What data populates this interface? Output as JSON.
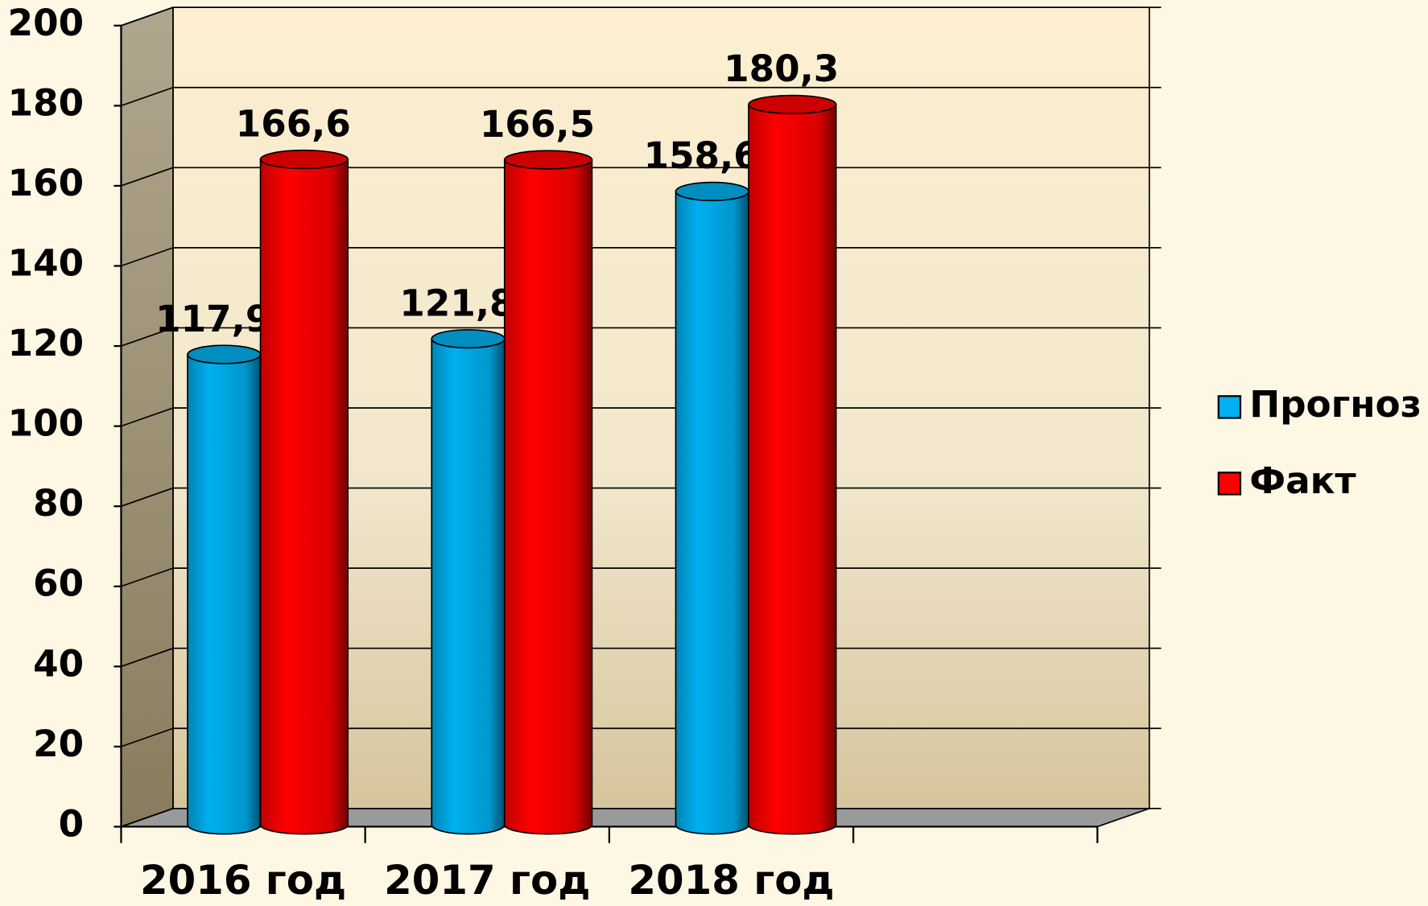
{
  "chart_data": {
    "type": "bar3d-cylinder",
    "categories": [
      "2016 год",
      "2017 год",
      "2018 год",
      null
    ],
    "series": [
      {
        "name": "Прогноз",
        "color": "#00b0f0",
        "values": [
          117.9,
          121.8,
          158.6,
          null
        ],
        "value_labels": [
          "117,9",
          "121,8",
          "158,6",
          null
        ]
      },
      {
        "name": "Факт",
        "color": "#ff0000",
        "values": [
          166.6,
          166.5,
          180.3,
          null
        ],
        "value_labels": [
          "166,6",
          "166,5",
          "180,3",
          null
        ]
      }
    ],
    "ylim": [
      0,
      200
    ],
    "yticks": [
      0,
      20,
      40,
      60,
      80,
      100,
      120,
      140,
      160,
      180,
      200
    ],
    "grid": true,
    "legend": "right"
  }
}
